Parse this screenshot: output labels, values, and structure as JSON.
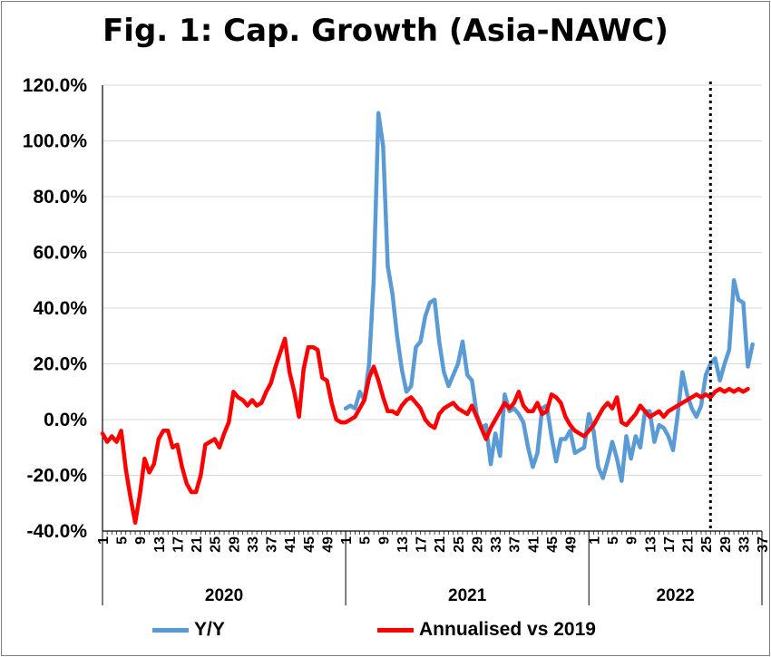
{
  "chart_data": {
    "type": "line",
    "title": "Fig. 1: Cap. Growth (Asia-NAWC)",
    "ylim": [
      -40,
      120
    ],
    "ytick_labels": [
      "120.0%",
      "100.0%",
      "80.0%",
      "60.0%",
      "40.0%",
      "20.0%",
      "0.0%",
      "-20.0%",
      "-40.0%"
    ],
    "yticks": [
      120,
      100,
      80,
      60,
      40,
      20,
      0,
      -20,
      -40
    ],
    "x_tick_labels": [
      "1",
      "5",
      "9",
      "13",
      "17",
      "21",
      "25",
      "29",
      "33",
      "37",
      "41",
      "45",
      "49",
      "1",
      "5",
      "9",
      "13",
      "17",
      "21",
      "25",
      "29",
      "33",
      "37",
      "41",
      "45",
      "49",
      "1",
      "5",
      "9",
      "13",
      "17",
      "21",
      "25",
      "29",
      "33",
      "37"
    ],
    "x_tick_indices": [
      0,
      4,
      8,
      12,
      16,
      20,
      24,
      28,
      32,
      36,
      40,
      44,
      48,
      52,
      56,
      60,
      64,
      68,
      72,
      76,
      80,
      84,
      88,
      92,
      96,
      100,
      105,
      109,
      113,
      117,
      121,
      125,
      129,
      133,
      137,
      141
    ],
    "year_groups": [
      {
        "label": "2020",
        "start": 0,
        "end": 52
      },
      {
        "label": "2021",
        "start": 52,
        "end": 104
      },
      {
        "label": "2022",
        "start": 104,
        "end": 141
      }
    ],
    "vline_index": 130,
    "grid": true,
    "legend_position": "bottom",
    "series": [
      {
        "name": "Y/Y",
        "color": "#5b9bd5",
        "start_index": 52,
        "values": [
          4,
          5,
          4,
          10,
          7,
          20,
          50,
          110,
          98,
          55,
          45,
          30,
          18,
          10,
          12,
          26,
          28,
          37,
          42,
          43,
          28,
          17,
          12,
          16,
          20,
          28,
          16,
          14,
          2,
          -3,
          -2,
          -16,
          -5,
          -13,
          9,
          3,
          4,
          2,
          -1,
          -10,
          -17,
          -12,
          4,
          5,
          -6,
          -15,
          -7,
          -7,
          -4,
          -12,
          -11,
          -10,
          2,
          -4,
          -17,
          -21,
          -15,
          -8,
          -14,
          -22,
          -6,
          -14,
          -6,
          -10,
          3,
          3,
          -8,
          -2,
          -3,
          -6,
          -11,
          2,
          17,
          9,
          4,
          1,
          5,
          16,
          20,
          22,
          14,
          20,
          25,
          50,
          43,
          42,
          19,
          27
        ]
      },
      {
        "name": "Annualised vs 2019",
        "color": "#ff0000",
        "start_index": 0,
        "values": [
          -5,
          -8,
          -6,
          -8,
          -4,
          -18,
          -28,
          -37,
          -27,
          -14,
          -19,
          -16,
          -7,
          -4,
          -4,
          -10,
          -9,
          -17,
          -23,
          -26,
          -26,
          -20,
          -9,
          -8,
          -7,
          -10,
          -5,
          -1,
          10,
          8,
          7,
          5,
          7,
          5,
          6,
          10,
          13,
          19,
          24,
          29,
          17,
          10,
          1,
          18,
          26,
          26,
          25,
          15,
          14,
          6,
          0,
          -1,
          -1,
          0,
          1,
          4,
          7,
          15,
          19,
          14,
          8,
          3,
          3,
          2,
          5,
          7,
          8,
          6,
          4,
          0,
          -2,
          -3,
          2,
          4,
          5,
          6,
          4,
          3,
          2,
          5,
          1,
          -3,
          -7,
          -3,
          0,
          3,
          6,
          4,
          6,
          10,
          5,
          3,
          3,
          6,
          2,
          3,
          9,
          8,
          6,
          1,
          -2,
          -4,
          -5,
          -6,
          -4,
          -2,
          1,
          4,
          6,
          4,
          8,
          -1,
          -2,
          0,
          2,
          5,
          3,
          1,
          2,
          3,
          1,
          3,
          4,
          5,
          6,
          7,
          8,
          9,
          8,
          9,
          8,
          10,
          11,
          10,
          11,
          10,
          11,
          10,
          11
        ]
      }
    ]
  }
}
